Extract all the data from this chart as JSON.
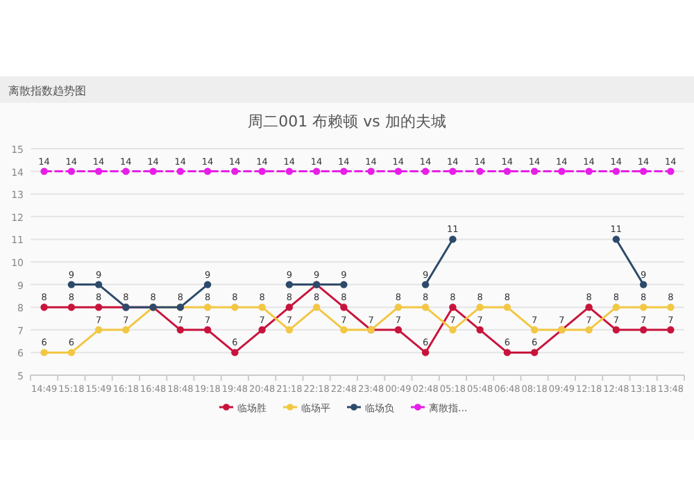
{
  "chart_data": {
    "type": "line",
    "title": "周二001 布赖顿 vs 加的夫城",
    "annotations": [
      "离散指数趋势图"
    ],
    "categories": [
      "14:49",
      "15:18",
      "15:49",
      "16:18",
      "16:48",
      "18:48",
      "19:18",
      "19:48",
      "20:48",
      "21:18",
      "22:18",
      "22:48",
      "23:48",
      "00:49",
      "02:48",
      "05:18",
      "05:48",
      "06:48",
      "08:18",
      "09:49",
      "12:18",
      "12:48",
      "13:18",
      "13:48"
    ],
    "series": [
      {
        "name": "临场胜",
        "color": "#c8143c",
        "values": [
          8,
          8,
          8,
          8,
          8,
          7,
          7,
          6,
          7,
          8,
          9,
          8,
          7,
          7,
          6,
          8,
          7,
          6,
          6,
          7,
          8,
          7,
          7,
          7
        ],
        "value_labels": [
          "8",
          "8",
          "8",
          "8",
          "8",
          "7",
          "7",
          "6",
          "7",
          "8",
          "9",
          "8",
          "7",
          "7",
          "6",
          "8",
          "7",
          "6",
          "6",
          "7",
          "8",
          "7",
          "7",
          "7"
        ]
      },
      {
        "name": "临场平",
        "color": "#f2c744",
        "values": [
          6,
          6,
          7,
          7,
          8,
          8,
          8,
          8,
          8,
          7,
          8,
          7,
          7,
          8,
          8,
          7,
          8,
          8,
          7,
          7,
          7,
          8,
          8,
          8
        ],
        "value_labels": [
          "6",
          "6",
          "7",
          "7",
          null,
          "8",
          "8",
          "8",
          "8",
          "7",
          "8",
          "7",
          null,
          "8",
          "8",
          "7",
          "8",
          "8",
          "7",
          null,
          "7",
          "8",
          "8",
          "8"
        ]
      },
      {
        "name": "临场负",
        "color": "#2d4a6a",
        "values": [
          null,
          9,
          9,
          8,
          8,
          8,
          9,
          null,
          null,
          9,
          9,
          9,
          null,
          null,
          9,
          11,
          null,
          null,
          null,
          null,
          null,
          11,
          9,
          null
        ],
        "value_labels": [
          null,
          "9",
          "9",
          null,
          null,
          null,
          "9",
          null,
          null,
          "9",
          null,
          "9",
          null,
          null,
          "9",
          "11",
          null,
          null,
          null,
          null,
          null,
          "11",
          "9",
          null
        ]
      },
      {
        "name": "离散指...",
        "color": "#e61ee6",
        "line_style": "dashed",
        "values": [
          14,
          14,
          14,
          14,
          14,
          14,
          14,
          14,
          14,
          14,
          14,
          14,
          14,
          14,
          14,
          14,
          14,
          14,
          14,
          14,
          14,
          14,
          14,
          14
        ],
        "value_labels": [
          "14",
          "14",
          "14",
          "14",
          "14",
          "14",
          "14",
          "14",
          "14",
          "14",
          "14",
          "14",
          "14",
          "14",
          "14",
          "14",
          "14",
          "14",
          "14",
          "14",
          "14",
          "14",
          "14",
          "14"
        ]
      }
    ],
    "ylim": [
      5,
      15
    ],
    "yticks": [
      5,
      6,
      7,
      8,
      9,
      10,
      11,
      12,
      13,
      14,
      15
    ],
    "grid": "y",
    "legend": "bottom",
    "marker": "circle"
  }
}
